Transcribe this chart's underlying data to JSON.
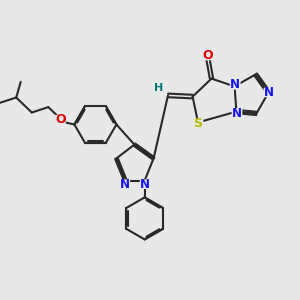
{
  "bg_color": "#e8e8e8",
  "bond_color": "#2a2a2a",
  "bond_lw": 1.5,
  "dbo": 0.06,
  "colors": {
    "N": "#1515ee",
    "O": "#dd0000",
    "S": "#bbbb00",
    "H": "#007b7b",
    "C": "#2a2a2a"
  },
  "fs": 7.5
}
